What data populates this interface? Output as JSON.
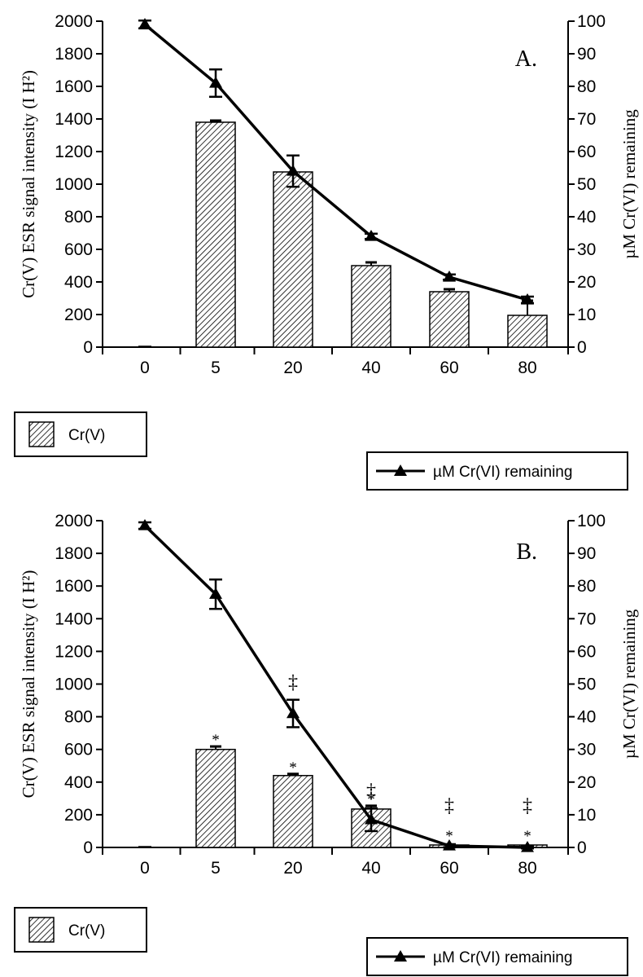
{
  "chart_data": [
    {
      "type": "bar",
      "panel_label": "A.",
      "categories": [
        "0",
        "5",
        "20",
        "40",
        "60",
        "80"
      ],
      "ylabel": "Cr(V) ESR signal intensity (I  H²)",
      "y2label": "µM Cr(VI) remaining",
      "ylim": [
        0,
        2000
      ],
      "y2lim": [
        0,
        100
      ],
      "yticks": [
        "0",
        "200",
        "400",
        "600",
        "800",
        "1000",
        "1200",
        "1400",
        "1600",
        "1800",
        "2000"
      ],
      "y2ticks": [
        "0",
        "10",
        "20",
        "30",
        "40",
        "50",
        "60",
        "70",
        "80",
        "90",
        "100"
      ],
      "series": [
        {
          "name": "Cr(V)",
          "type": "bar",
          "axis": "left",
          "values": [
            0,
            1380,
            1075,
            500,
            340,
            195
          ],
          "errors": [
            0,
            10,
            0,
            20,
            15,
            90
          ],
          "markers": [
            "",
            "",
            "",
            "",
            "",
            ""
          ]
        },
        {
          "name": "µM Cr(VI) remaining",
          "type": "line",
          "axis": "right",
          "values": [
            99,
            81,
            54,
            34,
            21.5,
            14.5
          ],
          "errors": [
            1.2,
            4.2,
            4.8,
            0.8,
            0.8,
            1
          ],
          "markers": [
            "",
            "",
            "",
            "",
            "",
            ""
          ]
        }
      ],
      "legend": [
        "Cr(V)",
        "µM Cr(VI) remaining"
      ],
      "legend_placement": "below"
    },
    {
      "type": "bar",
      "panel_label": "B.",
      "categories": [
        "0",
        "5",
        "20",
        "40",
        "60",
        "80"
      ],
      "ylabel": "Cr(V) ESR signal intensity (I  H²)",
      "y2label": "µM Cr(VI) remaining",
      "ylim": [
        0,
        2000
      ],
      "y2lim": [
        0,
        100
      ],
      "yticks": [
        "0",
        "200",
        "400",
        "600",
        "800",
        "1000",
        "1200",
        "1400",
        "1600",
        "1800",
        "2000"
      ],
      "y2ticks": [
        "0",
        "10",
        "20",
        "30",
        "40",
        "50",
        "60",
        "70",
        "80",
        "90",
        "100"
      ],
      "series": [
        {
          "name": "Cr(V)",
          "type": "bar",
          "axis": "left",
          "values": [
            0,
            600,
            440,
            235,
            10,
            5
          ],
          "errors": [
            0,
            18,
            10,
            20,
            0,
            0
          ],
          "markers": [
            "",
            "*",
            "*",
            "*",
            "*",
            "*"
          ]
        },
        {
          "name": "µM Cr(VI) remaining",
          "type": "line",
          "axis": "right",
          "values": [
            98.5,
            77.5,
            41,
            8.5,
            0.5,
            0
          ],
          "errors": [
            1,
            4.5,
            4.2,
            3.5,
            0.5,
            0.3
          ],
          "markers": [
            "",
            "",
            "‡",
            "‡",
            "‡",
            "‡"
          ]
        }
      ],
      "legend": [
        "Cr(V)",
        "µM Cr(VI) remaining"
      ],
      "legend_placement": "below"
    }
  ]
}
